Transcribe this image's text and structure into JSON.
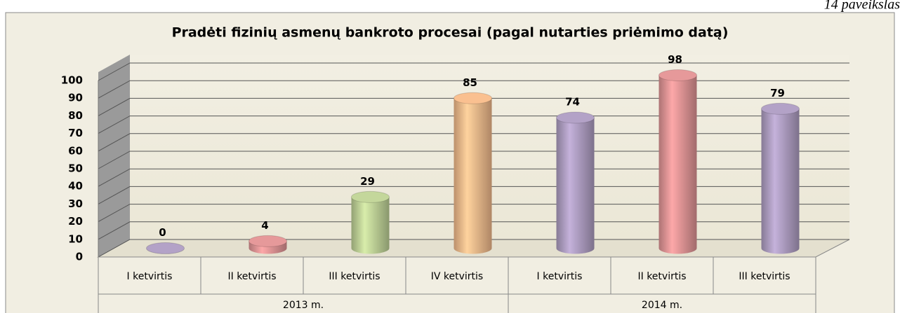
{
  "caption": "14 paveikslas",
  "chart_data": {
    "type": "bar3d",
    "title": "Pradėti fizinių asmenų bankroto procesai (pagal nutarties priėmimo datą)",
    "groups": [
      {
        "name": "2013 m.",
        "categories": [
          "I ketvirtis",
          "II ketvirtis",
          "III ketvirtis",
          "IV ketvirtis"
        ],
        "values": [
          0,
          4,
          29,
          85
        ],
        "colors": [
          "#b3a2c7",
          "#e6999a",
          "#c4d79b",
          "#fac090"
        ]
      },
      {
        "name": "2014 m.",
        "categories": [
          "I ketvirtis",
          "II ketvirtis",
          "III ketvirtis"
        ],
        "values": [
          74,
          98,
          79
        ],
        "colors": [
          "#b3a2c7",
          "#e6999a",
          "#b3a2c7"
        ]
      }
    ],
    "ylim": [
      0,
      100
    ],
    "yticks": [
      0,
      10,
      20,
      30,
      40,
      50,
      60,
      70,
      80,
      90,
      100
    ],
    "grid": true
  }
}
